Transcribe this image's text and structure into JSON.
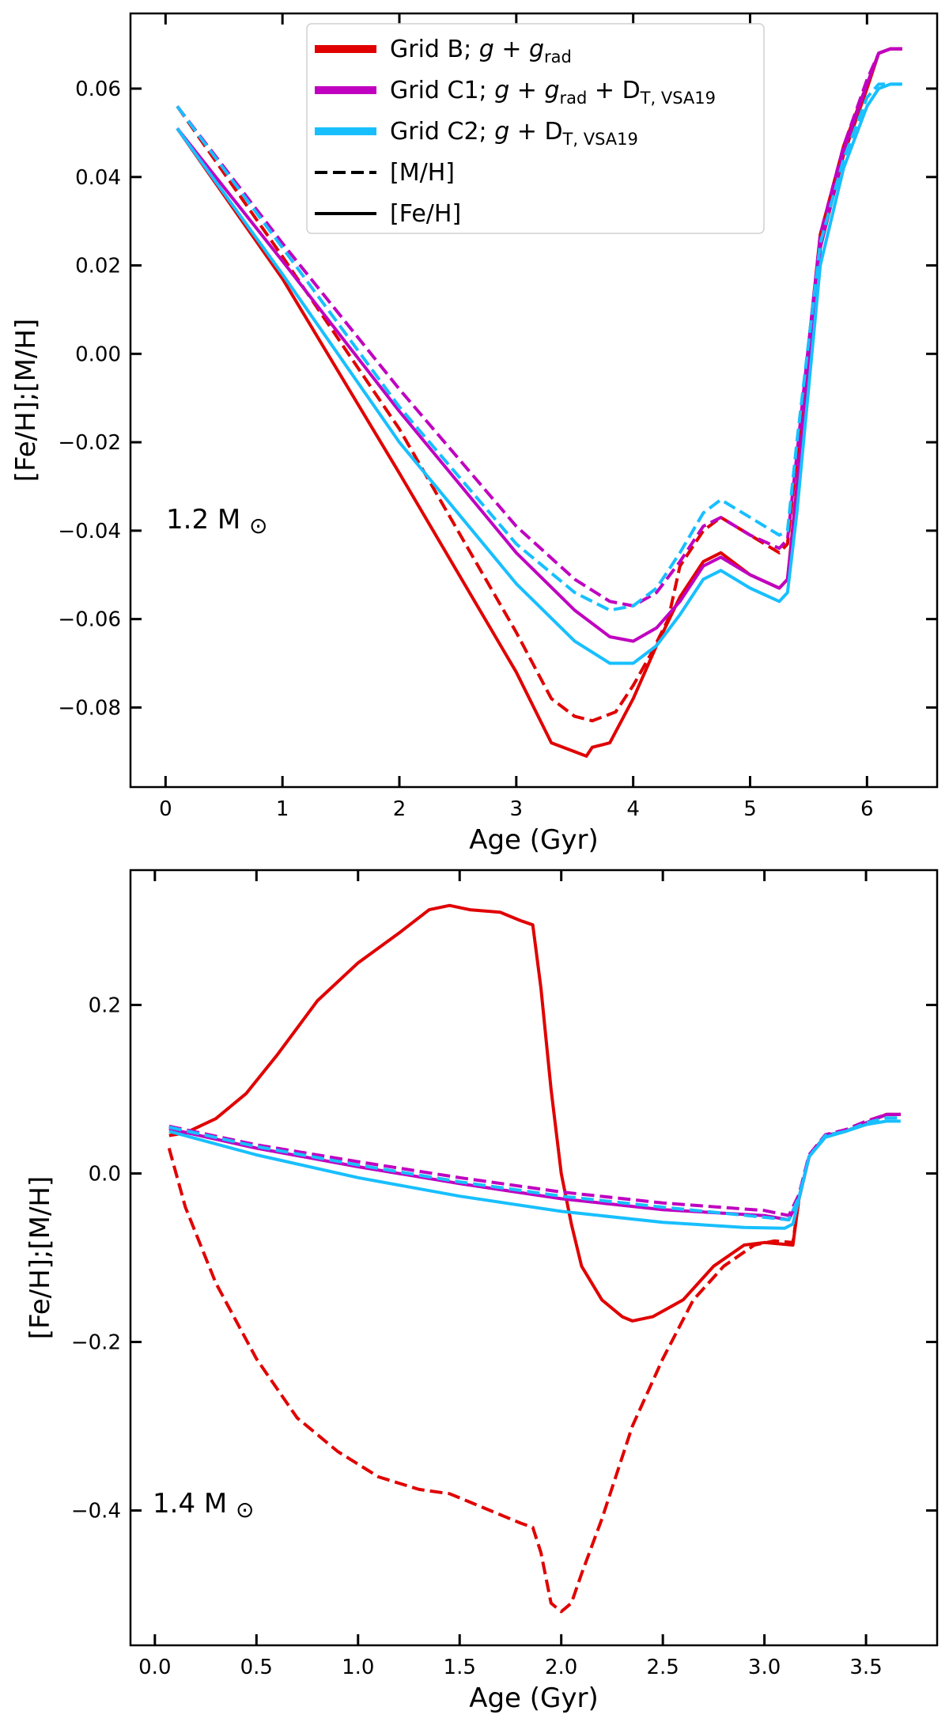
{
  "chart_data": [
    {
      "type": "line",
      "panel": "top",
      "annotation": "1.2 M",
      "annotation_symbol": "⊙",
      "xlabel": "Age (Gyr)",
      "ylabel": "[Fe/H];[M/H]",
      "xlim": [
        -0.3,
        6.6
      ],
      "ylim": [
        -0.098,
        0.077
      ],
      "xticks": [
        0,
        1,
        2,
        3,
        4,
        5,
        6
      ],
      "xtick_labels": [
        "0",
        "1",
        "2",
        "3",
        "4",
        "5",
        "6"
      ],
      "yticks": [
        -0.08,
        -0.06,
        -0.04,
        -0.02,
        0.0,
        0.02,
        0.04,
        0.06
      ],
      "ytick_labels": [
        "−0.08",
        "−0.06",
        "−0.04",
        "−0.02",
        "0.00",
        "0.02",
        "0.04",
        "0.06"
      ],
      "legend": {
        "position": "top-center",
        "entries": [
          {
            "label": "Grid B; g + grad",
            "main": "Grid B; ",
            "ital": "g",
            "mid": " + ",
            "ital2": "g",
            "sub": "rad",
            "tail": "",
            "tailsub": "",
            "color": "#e00000",
            "style": "solid-thick"
          },
          {
            "label": "Grid C1; g + grad + DT, VSA19",
            "main": "Grid C1; ",
            "ital": "g",
            "mid": " + ",
            "ital2": "g",
            "sub": "rad",
            "tail": " + D",
            "tailsub": "T, VSA19",
            "color": "#c000c0",
            "style": "solid-thick"
          },
          {
            "label": "Grid C2; g + DT, VSA19",
            "main": "Grid C2; ",
            "ital": "g",
            "mid": " + D",
            "ital2": "",
            "sub": "T, VSA19",
            "tail": "",
            "tailsub": "",
            "color": "#18bfff",
            "style": "solid-thick"
          },
          {
            "label": "[M/H]",
            "main": "[M/H]",
            "ital": "",
            "mid": "",
            "ital2": "",
            "sub": "",
            "tail": "",
            "tailsub": "",
            "color": "#000000",
            "style": "dashed"
          },
          {
            "label": "[Fe/H]",
            "main": "[Fe/H]",
            "ital": "",
            "mid": "",
            "ital2": "",
            "sub": "",
            "tail": "",
            "tailsub": "",
            "color": "#000000",
            "style": "solid"
          }
        ]
      },
      "series": [
        {
          "name": "Grid B [Fe/H]",
          "color": "#e00000",
          "dash": false,
          "x": [
            0.1,
            1.0,
            2.0,
            3.0,
            3.3,
            3.6,
            3.65,
            3.8,
            4.0,
            4.2,
            4.4,
            4.6,
            4.75,
            5.0,
            5.25,
            5.32,
            5.4,
            5.6,
            5.8,
            6.0,
            6.1,
            6.2,
            6.3
          ],
          "y": [
            0.051,
            0.017,
            -0.027,
            -0.072,
            -0.088,
            -0.091,
            -0.089,
            -0.088,
            -0.078,
            -0.066,
            -0.055,
            -0.047,
            -0.045,
            -0.05,
            -0.053,
            -0.051,
            -0.03,
            0.024,
            0.045,
            0.06,
            0.068,
            0.069,
            0.069
          ]
        },
        {
          "name": "Grid B [M/H]",
          "color": "#e00000",
          "dash": true,
          "x": [
            0.1,
            1.0,
            2.0,
            3.0,
            3.3,
            3.5,
            3.65,
            3.85,
            4.0,
            4.15,
            4.3,
            4.4,
            4.6,
            4.75,
            5.0,
            5.25,
            5.32,
            5.4,
            5.6,
            5.8,
            6.0,
            6.1,
            6.2,
            6.3
          ],
          "y": [
            0.056,
            0.022,
            -0.017,
            -0.063,
            -0.078,
            -0.082,
            -0.083,
            -0.081,
            -0.075,
            -0.068,
            -0.06,
            -0.048,
            -0.04,
            -0.037,
            -0.041,
            -0.045,
            -0.043,
            -0.023,
            0.027,
            0.047,
            0.061,
            0.068,
            0.069,
            0.069
          ]
        },
        {
          "name": "Grid C1 [Fe/H]",
          "color": "#c000c0",
          "dash": false,
          "x": [
            0.1,
            1.0,
            2.0,
            3.0,
            3.5,
            3.8,
            4.0,
            4.2,
            4.4,
            4.6,
            4.75,
            5.0,
            5.25,
            5.32,
            5.4,
            5.6,
            5.8,
            6.0,
            6.1,
            6.2,
            6.3
          ],
          "y": [
            0.051,
            0.021,
            -0.013,
            -0.045,
            -0.058,
            -0.064,
            -0.065,
            -0.062,
            -0.056,
            -0.048,
            -0.046,
            -0.05,
            -0.053,
            -0.051,
            -0.031,
            0.024,
            0.046,
            0.061,
            0.068,
            0.069,
            0.069
          ]
        },
        {
          "name": "Grid C1 [M/H]",
          "color": "#c000c0",
          "dash": true,
          "x": [
            0.1,
            1.0,
            2.0,
            3.0,
            3.5,
            3.8,
            4.0,
            4.2,
            4.4,
            4.6,
            4.75,
            5.0,
            5.25,
            5.32,
            5.4,
            5.6,
            5.8,
            6.0,
            6.1,
            6.2,
            6.3
          ],
          "y": [
            0.056,
            0.025,
            -0.008,
            -0.039,
            -0.051,
            -0.056,
            -0.057,
            -0.054,
            -0.047,
            -0.039,
            -0.037,
            -0.041,
            -0.044,
            -0.042,
            -0.023,
            0.027,
            0.047,
            0.062,
            0.068,
            0.069,
            0.069
          ]
        },
        {
          "name": "Grid C2 [Fe/H]",
          "color": "#18bfff",
          "dash": false,
          "x": [
            0.1,
            1.0,
            2.0,
            3.0,
            3.5,
            3.8,
            4.0,
            4.2,
            4.4,
            4.6,
            4.75,
            5.0,
            5.25,
            5.32,
            5.4,
            5.6,
            5.8,
            6.0,
            6.1,
            6.2,
            6.3
          ],
          "y": [
            0.051,
            0.018,
            -0.02,
            -0.052,
            -0.065,
            -0.07,
            -0.07,
            -0.066,
            -0.059,
            -0.051,
            -0.049,
            -0.053,
            -0.056,
            -0.054,
            -0.036,
            0.02,
            0.042,
            0.056,
            0.06,
            0.061,
            0.061
          ]
        },
        {
          "name": "Grid C2 [M/H]",
          "color": "#18bfff",
          "dash": true,
          "x": [
            0.1,
            1.0,
            2.0,
            3.0,
            3.5,
            3.8,
            4.0,
            4.2,
            4.4,
            4.6,
            4.75,
            5.0,
            5.25,
            5.32,
            5.4,
            5.6,
            5.8,
            6.0,
            6.1,
            6.2,
            6.3
          ],
          "y": [
            0.056,
            0.024,
            -0.012,
            -0.043,
            -0.054,
            -0.058,
            -0.057,
            -0.053,
            -0.045,
            -0.036,
            -0.033,
            -0.037,
            -0.041,
            -0.04,
            -0.02,
            0.025,
            0.044,
            0.058,
            0.061,
            0.061,
            0.061
          ]
        }
      ]
    },
    {
      "type": "line",
      "panel": "bottom",
      "annotation": "1.4 M",
      "annotation_symbol": "⊙",
      "xlabel": "Age (Gyr)",
      "ylabel": "[Fe/H];[M/H]",
      "xlim": [
        -0.12,
        3.85
      ],
      "ylim": [
        -0.56,
        0.36
      ],
      "xticks": [
        0.0,
        0.5,
        1.0,
        1.5,
        2.0,
        2.5,
        3.0,
        3.5
      ],
      "xtick_labels": [
        "0.0",
        "0.5",
        "1.0",
        "1.5",
        "2.0",
        "2.5",
        "3.0",
        "3.5"
      ],
      "yticks": [
        -0.4,
        -0.2,
        0.0,
        0.2
      ],
      "ytick_labels": [
        "−0.4",
        "−0.2",
        "0.0",
        "0.2"
      ],
      "series": [
        {
          "name": "Grid B [Fe/H]",
          "color": "#e00000",
          "dash": false,
          "x": [
            0.07,
            0.15,
            0.3,
            0.45,
            0.6,
            0.8,
            1.0,
            1.2,
            1.35,
            1.45,
            1.55,
            1.7,
            1.8,
            1.86,
            1.9,
            1.95,
            2.0,
            2.05,
            2.1,
            2.2,
            2.3,
            2.35,
            2.45,
            2.6,
            2.75,
            2.9,
            3.0,
            3.14,
            3.17,
            3.22,
            3.3,
            3.4,
            3.5,
            3.6,
            3.67
          ],
          "y": [
            0.045,
            0.048,
            0.065,
            0.095,
            0.14,
            0.205,
            0.25,
            0.285,
            0.313,
            0.318,
            0.313,
            0.31,
            0.3,
            0.295,
            0.22,
            0.1,
            0.0,
            -0.06,
            -0.11,
            -0.15,
            -0.17,
            -0.175,
            -0.17,
            -0.15,
            -0.11,
            -0.085,
            -0.082,
            -0.085,
            -0.03,
            0.02,
            0.045,
            0.05,
            0.06,
            0.07,
            0.07
          ]
        },
        {
          "name": "Grid B [M/H]",
          "color": "#e00000",
          "dash": true,
          "x": [
            0.07,
            0.15,
            0.3,
            0.5,
            0.7,
            0.9,
            1.1,
            1.3,
            1.45,
            1.55,
            1.7,
            1.8,
            1.86,
            1.9,
            1.95,
            2.0,
            2.05,
            2.1,
            2.2,
            2.35,
            2.5,
            2.65,
            2.8,
            2.95,
            3.05,
            3.14,
            3.17,
            3.22,
            3.3,
            3.4,
            3.5,
            3.6,
            3.67
          ],
          "y": [
            0.03,
            -0.04,
            -0.13,
            -0.22,
            -0.29,
            -0.33,
            -0.36,
            -0.375,
            -0.38,
            -0.39,
            -0.405,
            -0.415,
            -0.42,
            -0.45,
            -0.51,
            -0.52,
            -0.51,
            -0.475,
            -0.41,
            -0.3,
            -0.22,
            -0.15,
            -0.11,
            -0.085,
            -0.08,
            -0.082,
            -0.03,
            0.02,
            0.045,
            0.05,
            0.06,
            0.07,
            0.07
          ]
        },
        {
          "name": "Grid C1 [Fe/H]",
          "color": "#c000c0",
          "dash": false,
          "x": [
            0.07,
            0.5,
            1.0,
            1.5,
            2.0,
            2.5,
            3.0,
            3.12,
            3.17,
            3.22,
            3.3,
            3.4,
            3.5,
            3.6,
            3.67
          ],
          "y": [
            0.053,
            0.03,
            0.008,
            -0.012,
            -0.03,
            -0.043,
            -0.05,
            -0.055,
            -0.03,
            0.02,
            0.045,
            0.05,
            0.06,
            0.07,
            0.07
          ]
        },
        {
          "name": "Grid C1 [M/H]",
          "color": "#c000c0",
          "dash": true,
          "x": [
            0.07,
            0.5,
            1.0,
            1.5,
            2.0,
            2.5,
            3.0,
            3.12,
            3.17,
            3.22,
            3.3,
            3.4,
            3.5,
            3.6,
            3.67
          ],
          "y": [
            0.056,
            0.034,
            0.014,
            -0.005,
            -0.022,
            -0.035,
            -0.044,
            -0.05,
            -0.025,
            0.022,
            0.046,
            0.052,
            0.062,
            0.07,
            0.07
          ]
        },
        {
          "name": "Grid C2 [Fe/H]",
          "color": "#18bfff",
          "dash": false,
          "x": [
            0.07,
            0.5,
            1.0,
            1.5,
            2.0,
            2.5,
            2.9,
            3.1,
            3.14,
            3.17,
            3.22,
            3.3,
            3.4,
            3.5,
            3.6,
            3.67
          ],
          "y": [
            0.05,
            0.022,
            -0.005,
            -0.027,
            -0.045,
            -0.058,
            -0.064,
            -0.065,
            -0.06,
            -0.03,
            0.02,
            0.043,
            0.05,
            0.058,
            0.062,
            0.062
          ]
        },
        {
          "name": "Grid C2 [M/H]",
          "color": "#18bfff",
          "dash": true,
          "x": [
            0.07,
            0.5,
            1.0,
            1.5,
            2.0,
            2.5,
            3.0,
            3.12,
            3.17,
            3.22,
            3.3,
            3.4,
            3.5,
            3.6,
            3.67
          ],
          "y": [
            0.055,
            0.032,
            0.01,
            -0.01,
            -0.027,
            -0.04,
            -0.052,
            -0.055,
            -0.028,
            0.02,
            0.045,
            0.05,
            0.06,
            0.066,
            0.066
          ]
        }
      ]
    }
  ]
}
